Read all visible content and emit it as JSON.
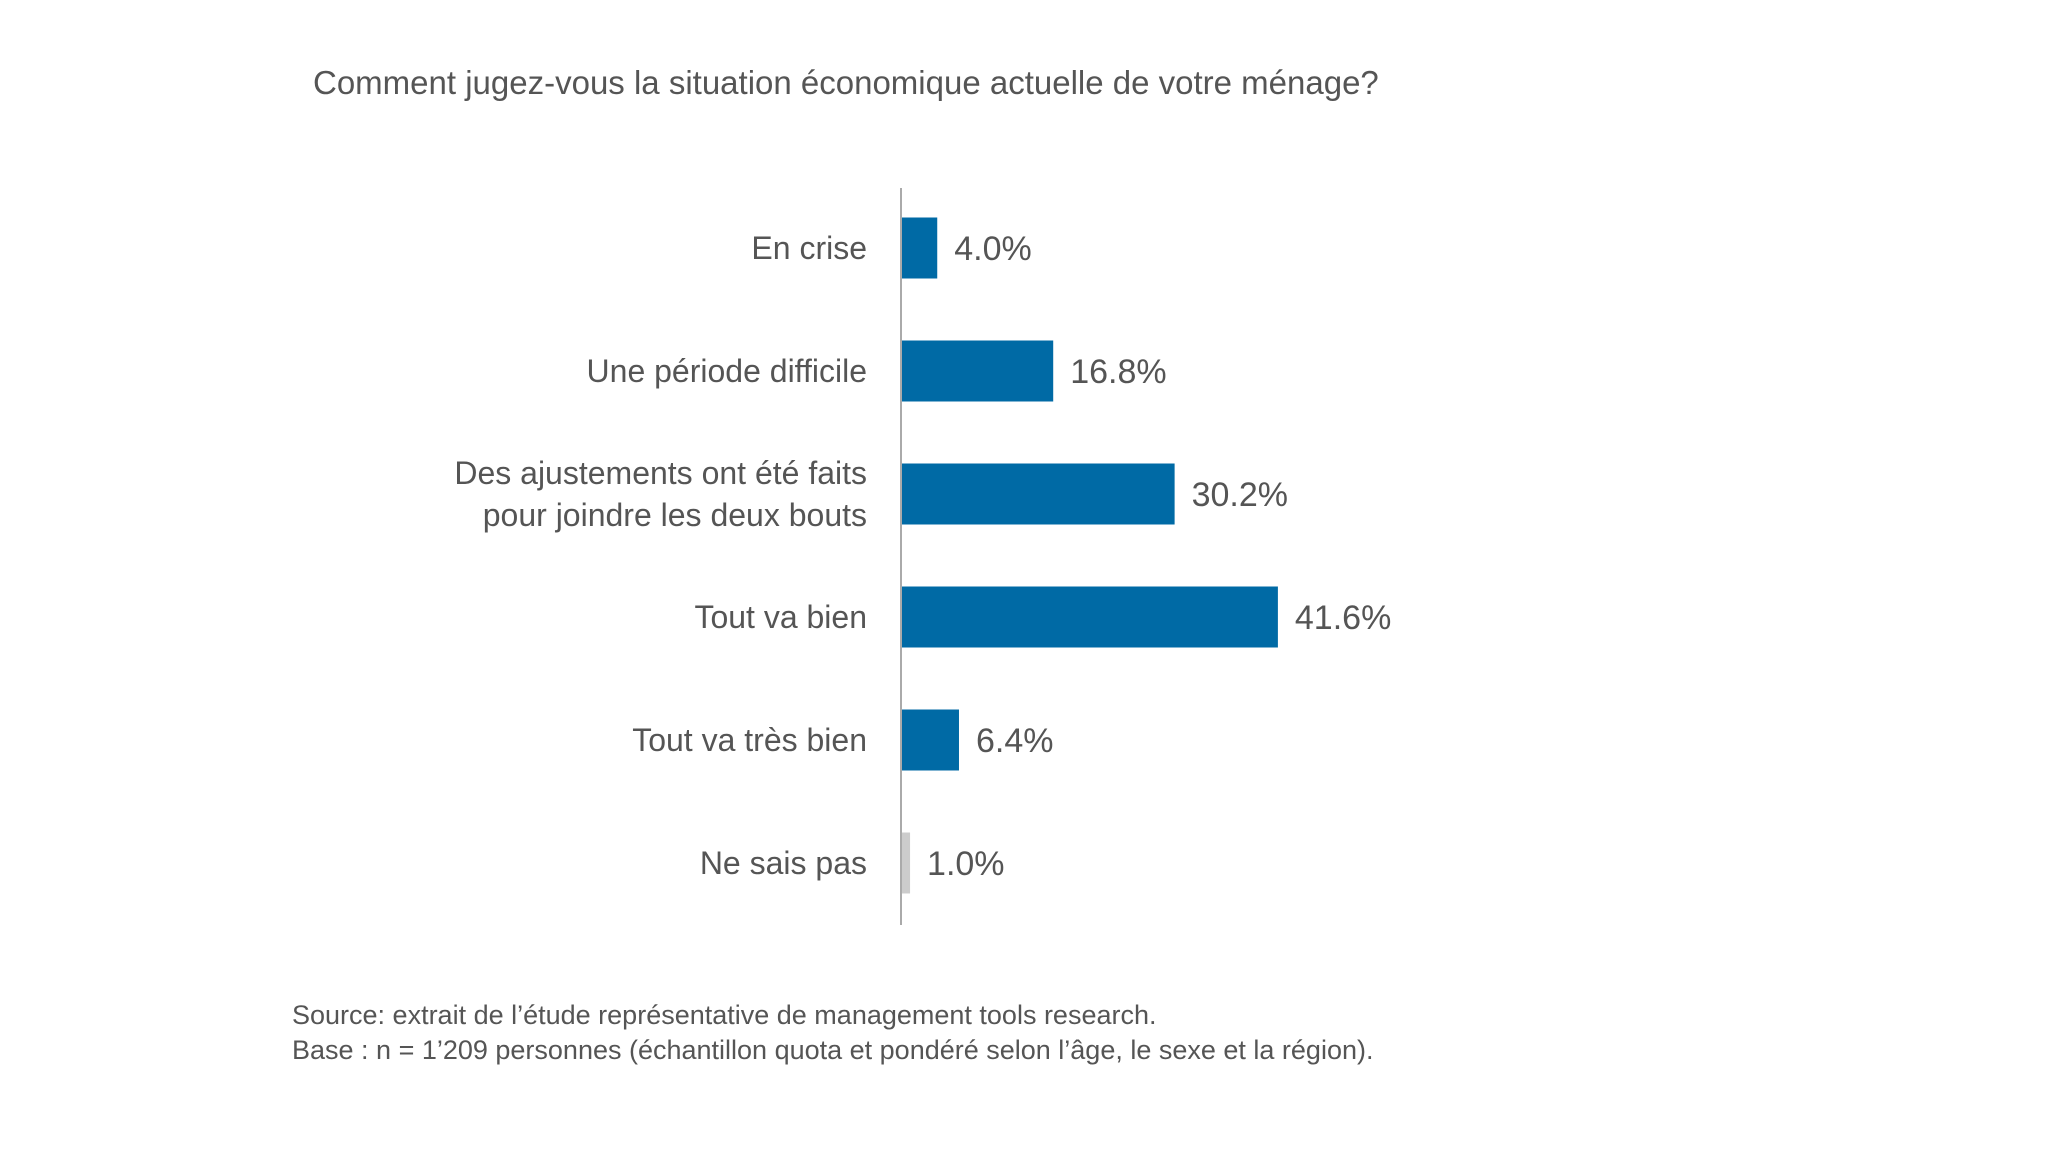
{
  "chart_data": {
    "type": "bar",
    "orientation": "horizontal",
    "title": "Comment jugez-vous la situation économique actuelle de votre ménage?",
    "categories": [
      "En crise",
      "Une période difficile",
      "Des ajustements ont été faits|pour joindre les deux bouts",
      "Tout va bien",
      "Tout va très bien",
      "Ne sais pas"
    ],
    "values": [
      4.0,
      16.8,
      30.2,
      41.6,
      6.4,
      1.0
    ],
    "value_labels": [
      "4.0%",
      "16.8%",
      "30.2%",
      "41.6%",
      "6.4%",
      "1.0%"
    ],
    "colors": [
      "#006aa5",
      "#006aa5",
      "#006aa5",
      "#006aa5",
      "#006aa5",
      "#cccccc"
    ],
    "xlim": [
      0,
      50
    ],
    "grid": false,
    "legend": "none"
  },
  "footnote": {
    "source": "Source: extrait de l’étude représentative de management tools research.",
    "base": "Base : n = 1’209 personnes (échantillon quota et pondéré selon l’âge, le sexe et la région)."
  }
}
